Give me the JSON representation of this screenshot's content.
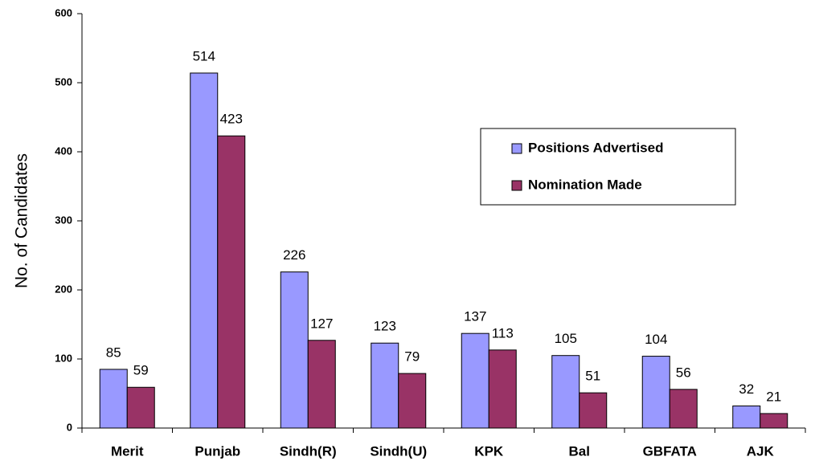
{
  "chart_data": {
    "type": "bar",
    "y_axis_label": "No. of Candidates",
    "categories": [
      "Merit",
      "Punjab",
      "Sindh(R)",
      "Sindh(U)",
      "KPK",
      "Bal",
      "GBFATA",
      "AJK"
    ],
    "series": [
      {
        "name": "Positions Advertised",
        "color": "#9999ff",
        "values": [
          85,
          514,
          226,
          123,
          137,
          105,
          104,
          32
        ]
      },
      {
        "name": "Nomination Made",
        "color": "#993366",
        "values": [
          59,
          423,
          127,
          79,
          113,
          51,
          56,
          21
        ]
      }
    ],
    "ylim": [
      0,
      600
    ],
    "yticks": [
      0,
      100,
      200,
      300,
      400,
      500,
      600
    ],
    "grid": false,
    "legend": "right"
  }
}
